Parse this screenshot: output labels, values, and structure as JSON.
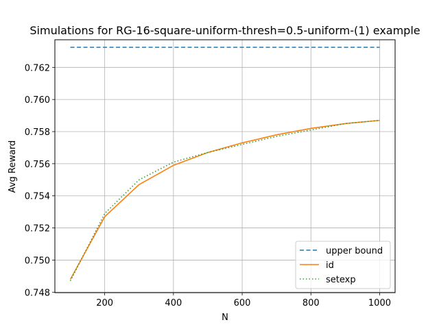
{
  "chart_data": {
    "type": "line",
    "title": "Simulations for RG-16-square-uniform-thresh=0.5-uniform-(1) example",
    "xlabel": "N",
    "ylabel": "Avg Reward",
    "xlim": [
      55,
      1045
    ],
    "ylim": [
      0.74797,
      0.76372
    ],
    "xticks": [
      200,
      400,
      600,
      800,
      1000
    ],
    "yticks": [
      0.748,
      0.75,
      0.752,
      0.754,
      0.756,
      0.758,
      0.76,
      0.762
    ],
    "ytick_labels": [
      "0.748",
      "0.750",
      "0.752",
      "0.754",
      "0.756",
      "0.758",
      "0.760",
      "0.762"
    ],
    "grid": true,
    "legend_position": "lower-right",
    "x": [
      100,
      200,
      300,
      400,
      500,
      600,
      700,
      800,
      900,
      1000
    ],
    "series": [
      {
        "name": "upper bound",
        "color": "#1f77b4",
        "style": "dashed",
        "values": [
          0.76325,
          0.76325,
          0.76325,
          0.76325,
          0.76325,
          0.76325,
          0.76325,
          0.76325,
          0.76325,
          0.76325
        ]
      },
      {
        "name": "id",
        "color": "#ff7f0e",
        "style": "solid",
        "values": [
          0.7488,
          0.7527,
          0.7547,
          0.7559,
          0.7567,
          0.7573,
          0.7578,
          0.7582,
          0.7585,
          0.7587
        ]
      },
      {
        "name": "setexp",
        "color": "#2ca02c",
        "style": "dotted",
        "values": [
          0.7487,
          0.7529,
          0.755,
          0.7561,
          0.7567,
          0.7572,
          0.7577,
          0.7581,
          0.7585,
          0.7587
        ]
      }
    ]
  }
}
